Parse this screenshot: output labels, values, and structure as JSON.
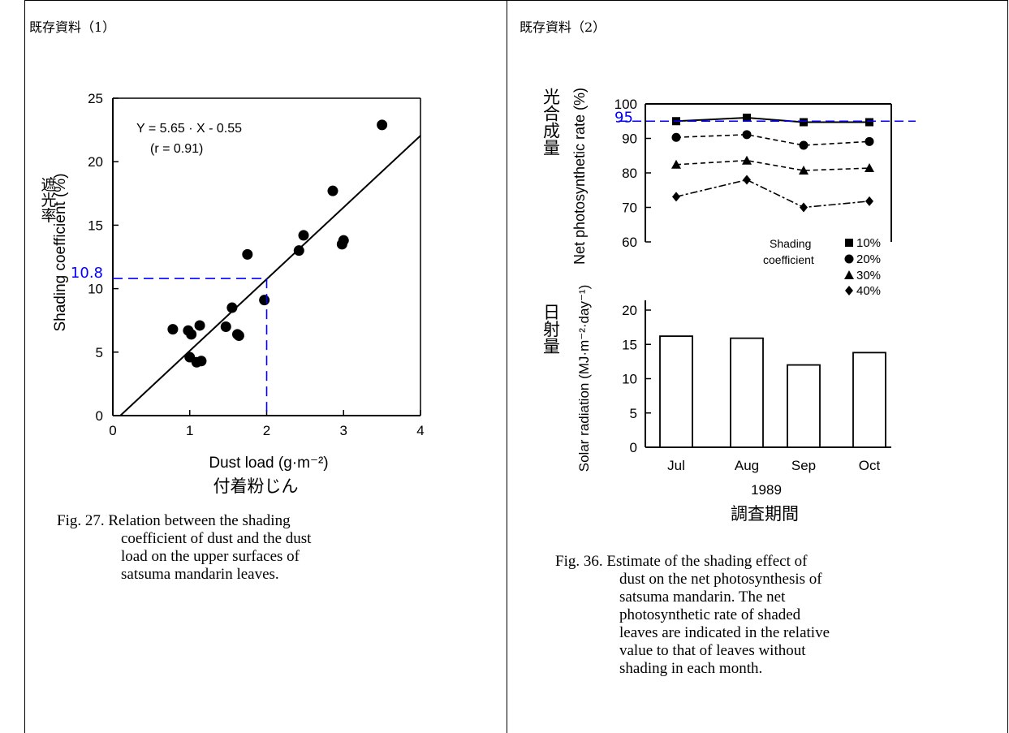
{
  "panels": [
    {
      "title": "既存資料（1）"
    },
    {
      "title": "既存資料（2）"
    }
  ],
  "chart_data": [
    {
      "type": "scatter",
      "xlabel": "Dust load (g·m⁻²)",
      "xlabel_ja": "付着粉じん",
      "ylabel": "Shading coefficient (%)",
      "ylabel_ja": "遮光率",
      "xlim": [
        0,
        4
      ],
      "ylim": [
        0,
        25
      ],
      "x_ticks": [
        "0",
        "1",
        "2",
        "3",
        "4"
      ],
      "y_ticks": [
        "0",
        "5",
        "10",
        "15",
        "20",
        "25"
      ],
      "equation": "Y = 5.65 · X - 0.55",
      "r_label": "(r = 0.91)",
      "regression": {
        "slope": 5.65,
        "intercept": -0.55
      },
      "points": [
        {
          "x": 0.78,
          "y": 6.8
        },
        {
          "x": 0.98,
          "y": 6.7
        },
        {
          "x": 1.02,
          "y": 6.4
        },
        {
          "x": 1.0,
          "y": 4.6
        },
        {
          "x": 1.09,
          "y": 4.2
        },
        {
          "x": 1.15,
          "y": 4.3
        },
        {
          "x": 1.13,
          "y": 7.1
        },
        {
          "x": 1.47,
          "y": 7.0
        },
        {
          "x": 1.55,
          "y": 8.5
        },
        {
          "x": 1.62,
          "y": 6.4
        },
        {
          "x": 1.64,
          "y": 6.3
        },
        {
          "x": 1.75,
          "y": 12.7
        },
        {
          "x": 1.97,
          "y": 9.1
        },
        {
          "x": 2.42,
          "y": 13.0
        },
        {
          "x": 2.48,
          "y": 14.2
        },
        {
          "x": 2.86,
          "y": 17.7
        },
        {
          "x": 2.98,
          "y": 13.5
        },
        {
          "x": 3.0,
          "y": 13.8
        },
        {
          "x": 3.5,
          "y": 22.9
        }
      ],
      "annotation": {
        "x": 2,
        "y": 10.8,
        "label": "10.8",
        "color": "#0000ff"
      },
      "caption_lead": "Fig. 27. Relation between the shading",
      "caption_rest": [
        "coefficient of dust and the dust",
        "load on the upper surfaces of",
        "satsuma mandarin leaves."
      ]
    },
    {
      "type": "line",
      "categories": [
        "Jul",
        "Aug",
        "Sep",
        "Oct"
      ],
      "year_label": "1989",
      "xlabel_ja": "調査期間",
      "ylabel": "Net photosynthetic rate (%)",
      "ylabel_ja": "光合成量",
      "ylim": [
        60,
        100
      ],
      "y_ticks": [
        "60",
        "70",
        "80",
        "90",
        "100"
      ],
      "legend_title": [
        "Shading",
        "coefficient"
      ],
      "series": [
        {
          "name": "10%",
          "marker": "square",
          "values": [
            95.0,
            96.0,
            94.7,
            94.7
          ]
        },
        {
          "name": "20%",
          "marker": "circle",
          "values": [
            90.3,
            91.1,
            88.0,
            89.1
          ]
        },
        {
          "name": "30%",
          "marker": "triangle",
          "values": [
            82.4,
            83.6,
            80.7,
            81.4
          ]
        },
        {
          "name": "40%",
          "marker": "diamond",
          "values": [
            73.1,
            78.0,
            70.0,
            71.8
          ]
        }
      ],
      "reference": {
        "y": 95,
        "label": "95",
        "color": "#0000ff"
      },
      "caption_lead": "Fig. 36. Estimate of the shading effect of",
      "caption_rest": [
        "dust on the net photosynthesis of",
        "satsuma mandarin. The net",
        "photosynthetic rate of shaded",
        "leaves are indicated in the relative",
        "value to that of leaves without",
        "shading in each month."
      ]
    },
    {
      "type": "bar",
      "categories": [
        "Jul",
        "Aug",
        "Sep",
        "Oct"
      ],
      "values": [
        16.2,
        15.9,
        12.0,
        13.8
      ],
      "ylabel": "Solar radiation (MJ·m⁻²·day⁻¹)",
      "ylabel_ja": "日射量",
      "ylim": [
        0,
        20
      ],
      "y_ticks": [
        "0",
        "5",
        "10",
        "15",
        "20"
      ]
    }
  ]
}
